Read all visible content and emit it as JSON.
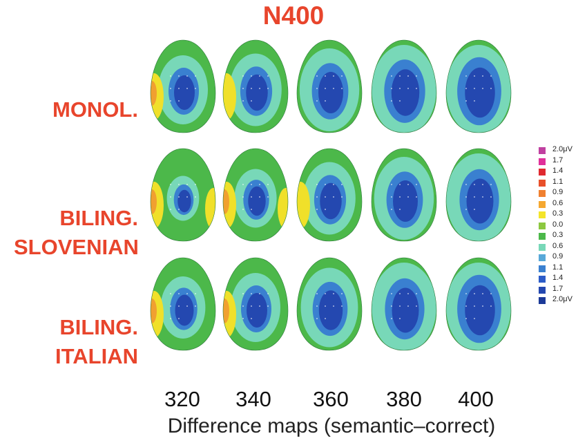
{
  "title": "N400",
  "groups": [
    {
      "label_lines": [
        "MONOL."
      ],
      "intensity": [
        1.0,
        1.05,
        1.2,
        1.35,
        1.45
      ]
    },
    {
      "label_lines": [
        "BILING.",
        "SLOVENIAN"
      ],
      "intensity": [
        0.65,
        0.85,
        1.05,
        1.2,
        1.3
      ]
    },
    {
      "label_lines": [
        "BILING.",
        "ITALIAN"
      ],
      "intensity": [
        0.9,
        1.0,
        1.15,
        1.3,
        1.45
      ]
    }
  ],
  "time_labels": [
    "320",
    "340",
    "360",
    "380",
    "400"
  ],
  "xlabel": "Difference maps (semantic–correct)",
  "legend": {
    "entries": [
      {
        "label": "2.0μV",
        "color": "#c040a0"
      },
      {
        "label": "1.7",
        "color": "#e0309a"
      },
      {
        "label": "1.4",
        "color": "#e02a30"
      },
      {
        "label": "1.1",
        "color": "#e8502a"
      },
      {
        "label": "0.9",
        "color": "#f08030"
      },
      {
        "label": "0.6",
        "color": "#f5a830"
      },
      {
        "label": "0.3",
        "color": "#f4e42a"
      },
      {
        "label": "0.0",
        "color": "#8cc840"
      },
      {
        "label": "0.3",
        "color": "#4cb84a"
      },
      {
        "label": "0.6",
        "color": "#78d8b8"
      },
      {
        "label": "0.9",
        "color": "#58a8d8"
      },
      {
        "label": "1.1",
        "color": "#3a80d0"
      },
      {
        "label": "1.4",
        "color": "#2c5cc8"
      },
      {
        "label": "1.7",
        "color": "#2448b0"
      },
      {
        "label": "2.0μV",
        "color": "#1c3a98"
      }
    ]
  },
  "colors": {
    "title": "#e8452c",
    "yellow": "#f0e02a",
    "orange": "#f0a030",
    "green": "#4cb84a",
    "teal": "#78d8b8",
    "blue_light": "#3a80d0",
    "blue_dark": "#2448b0"
  }
}
